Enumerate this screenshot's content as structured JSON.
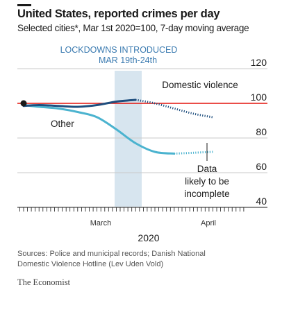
{
  "title": "United States, reported crimes per day",
  "subtitle": "Selected cities*, Mar 1st 2020=100, 7-day moving average",
  "lockdown_label_1": "LOCKDOWNS INTRODUCED",
  "lockdown_label_2": "MAR 19th-24th",
  "annotation_domestic": "Domestic violence",
  "annotation_other": "Other",
  "annotation_data_1": "Data",
  "annotation_data_2": "likely to be",
  "annotation_data_3": "incomplete",
  "x_tick_march": "March",
  "x_tick_april": "April",
  "x_year": "2020",
  "source_1": "Sources: Police and municipal records; Danish National",
  "source_2": "Domestic Violence Hotline (Lev Uden Vold)",
  "brand": "The Economist",
  "colors": {
    "domestic": "#1e4e7e",
    "other": "#4bb3cf",
    "reference": "#e3120b",
    "shade": "#d7e5ef",
    "grid": "#c9c9c9"
  },
  "chart_data": {
    "type": "line",
    "title": "United States, reported crimes per day",
    "subtitle": "Selected cities*, Mar 1st 2020=100, 7-day moving average",
    "x_unit": "day of 2020",
    "x_range": [
      "2020-03-01",
      "2020-04-27"
    ],
    "ylim": [
      40,
      120
    ],
    "y_ticks": [
      40,
      60,
      80,
      100,
      120
    ],
    "x_ticks": [
      "March",
      "April"
    ],
    "reference_line": 100,
    "shaded_period": {
      "label": "LOCKDOWNS INTRODUCED MAR 19th-24th",
      "from": "2020-03-19",
      "to": "2020-03-24"
    },
    "series": [
      {
        "name": "Domestic violence",
        "x": [
          "2020-03-01",
          "2020-03-05",
          "2020-03-10",
          "2020-03-15",
          "2020-03-20",
          "2020-03-25",
          "2020-03-30",
          "2020-04-04",
          "2020-04-09",
          "2020-04-14",
          "2020-04-19"
        ],
        "y": [
          98.5,
          99,
          98.5,
          98,
          99,
          101,
          102,
          100,
          97,
          94,
          92
        ],
        "incomplete_from": "2020-04-02"
      },
      {
        "name": "Other",
        "x": [
          "2020-03-01",
          "2020-03-05",
          "2020-03-10",
          "2020-03-15",
          "2020-03-20",
          "2020-03-25",
          "2020-03-30",
          "2020-04-04",
          "2020-04-09",
          "2020-04-14",
          "2020-04-19"
        ],
        "y": [
          99,
          98,
          97,
          95,
          92,
          85,
          77,
          72,
          71,
          71.5,
          72
        ],
        "incomplete_from": "2020-04-09"
      }
    ]
  }
}
